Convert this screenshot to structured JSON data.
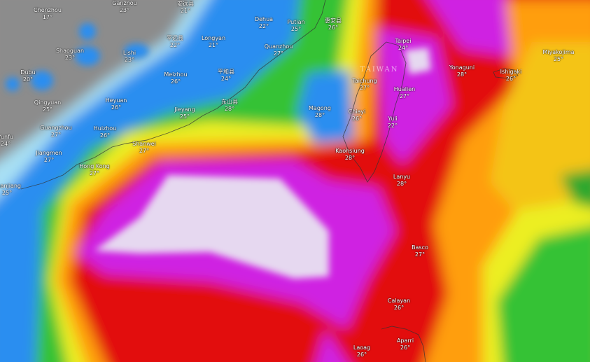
{
  "map": {
    "layer": "temperature",
    "region_label": "TAIWAN",
    "colors": {
      "land_gray": "#8c8c8c",
      "light_blue": "#a8e0f4",
      "blue": "#2a8ef0",
      "green": "#36c236",
      "yellow": "#f0ee22",
      "orange": "#ff9e0c",
      "red": "#e20808",
      "magenta": "#cf22e2",
      "lavender": "#e6d8f0"
    },
    "cities": [
      {
        "name": "Chenzhou",
        "temp": "17°"
      },
      {
        "name": "Ganzhou",
        "temp": "23°"
      },
      {
        "name": "安远县",
        "temp": "21°"
      },
      {
        "name": "Dubu",
        "temp": "20°"
      },
      {
        "name": "Shaoguan",
        "temp": "23°"
      },
      {
        "name": "Lishi",
        "temp": "23°"
      },
      {
        "name": "平远县",
        "temp": "22°"
      },
      {
        "name": "Longyan",
        "temp": "21°"
      },
      {
        "name": "Dehua",
        "temp": "22°"
      },
      {
        "name": "Putian",
        "temp": "25°"
      },
      {
        "name": "惠安县",
        "temp": "26°"
      },
      {
        "name": "Quanzhou",
        "temp": "27°"
      },
      {
        "name": "Meizhou",
        "temp": "26°"
      },
      {
        "name": "平和县",
        "temp": "24°"
      },
      {
        "name": "Qingyuan",
        "temp": "25°"
      },
      {
        "name": "Heyuan",
        "temp": "26°"
      },
      {
        "name": "东山县",
        "temp": "28°"
      },
      {
        "name": "Jieyang",
        "temp": "25°"
      },
      {
        "name": "Guangzhou",
        "temp": "27°"
      },
      {
        "name": "Huizhou",
        "temp": "26°"
      },
      {
        "name": "Yunfu",
        "temp": "24°"
      },
      {
        "name": "Shanwei",
        "temp": "27°"
      },
      {
        "name": "Jiangmen",
        "temp": "27°"
      },
      {
        "name": "Hong Kong",
        "temp": "27°"
      },
      {
        "name": "Zhanjiang",
        "temp": "25°"
      },
      {
        "name": "Taipei",
        "temp": "24°"
      },
      {
        "name": "Yonaguni",
        "temp": "28°"
      },
      {
        "name": "Ishigaki",
        "temp": "26°"
      },
      {
        "name": "Miyakojima",
        "temp": "25°"
      },
      {
        "name": "Taichung",
        "temp": "27°"
      },
      {
        "name": "Hualien",
        "temp": "27°"
      },
      {
        "name": "Magong",
        "temp": "28°"
      },
      {
        "name": "Chiayi",
        "temp": "26°"
      },
      {
        "name": "Yuli",
        "temp": "22°"
      },
      {
        "name": "Kaohsiung",
        "temp": "28°"
      },
      {
        "name": "Lanyu",
        "temp": "28°"
      },
      {
        "name": "Basco",
        "temp": "27°"
      },
      {
        "name": "Calayan",
        "temp": "26°"
      },
      {
        "name": "Aparri",
        "temp": "26°"
      },
      {
        "name": "Laoag",
        "temp": "26°"
      }
    ]
  }
}
